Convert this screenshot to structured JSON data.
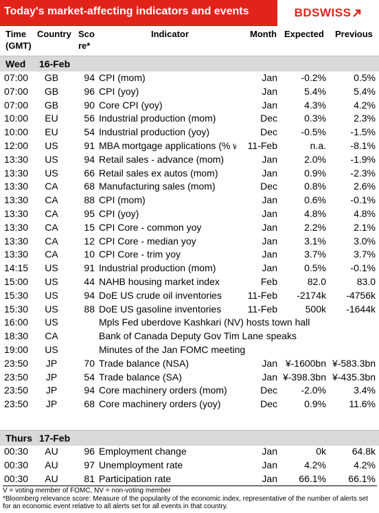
{
  "header": {
    "title": "Today's market-affecting indicators and events",
    "logo": "BDSWISS"
  },
  "columns": {
    "time": [
      "Time",
      "(GMT)"
    ],
    "country": "Country",
    "score": [
      "Sco",
      "re*"
    ],
    "indicator": "Indicator",
    "month": "Month",
    "expected": "Expected",
    "previous": "Previous"
  },
  "days": [
    {
      "day": "Wed",
      "date": "16-Feb",
      "rows": [
        {
          "time": "07:00",
          "country": "GB",
          "score": "94",
          "indicator": "CPI (mom)",
          "month": "Jan",
          "expected": "-0.2%",
          "previous": "0.5%"
        },
        {
          "time": "07:00",
          "country": "GB",
          "score": "96",
          "indicator": "CPI (yoy)",
          "month": "Jan",
          "expected": "5.4%",
          "previous": "5.4%"
        },
        {
          "time": "07:00",
          "country": "GB",
          "score": "90",
          "indicator": "Core CPI (yoy)",
          "month": "Jan",
          "expected": "4.3%",
          "previous": "4.2%"
        },
        {
          "time": "10:00",
          "country": "EU",
          "score": "56",
          "indicator": "Industrial production (mom)",
          "month": "Dec",
          "expected": "0.3%",
          "previous": "2.3%"
        },
        {
          "time": "10:00",
          "country": "EU",
          "score": "54",
          "indicator": "Industrial production (yoy)",
          "month": "Dec",
          "expected": "-0.5%",
          "previous": "-1.5%"
        },
        {
          "time": "12:00",
          "country": "US",
          "score": "91",
          "indicator": "MBA mortgage applications (% w",
          "month": "11-Feb",
          "expected": "n.a.",
          "previous": "-8.1%"
        },
        {
          "time": "13:30",
          "country": "US",
          "score": "94",
          "indicator": "Retail sales - advance (mom)",
          "month": "Jan",
          "expected": "2.0%",
          "previous": "-1.9%"
        },
        {
          "time": "13:30",
          "country": "US",
          "score": "66",
          "indicator": "Retail sales ex autos (mom)",
          "month": "Jan",
          "expected": "0.9%",
          "previous": "-2.3%"
        },
        {
          "time": "13:30",
          "country": "CA",
          "score": "68",
          "indicator": "Manufacturing sales (mom)",
          "month": "Dec",
          "expected": "0.8%",
          "previous": "2.6%"
        },
        {
          "time": "13:30",
          "country": "CA",
          "score": "88",
          "indicator": "CPI (mom)",
          "month": "Jan",
          "expected": "0.6%",
          "previous": "-0.1%"
        },
        {
          "time": "13:30",
          "country": "CA",
          "score": "95",
          "indicator": "CPI (yoy)",
          "month": "Jan",
          "expected": "4.8%",
          "previous": "4.8%"
        },
        {
          "time": "13:30",
          "country": "CA",
          "score": "15",
          "indicator": "CPI Core - common yoy",
          "month": "Jan",
          "expected": "2.2%",
          "previous": "2.1%"
        },
        {
          "time": "13:30",
          "country": "CA",
          "score": "12",
          "indicator": "CPI Core - median yoy",
          "month": "Jan",
          "expected": "3.1%",
          "previous": "3.0%"
        },
        {
          "time": "13:30",
          "country": "CA",
          "score": "10",
          "indicator": "CPI Core - trim yoy",
          "month": "Jan",
          "expected": "3.7%",
          "previous": "3.7%"
        },
        {
          "time": "14:15",
          "country": "US",
          "score": "91",
          "indicator": "Industrial production (mom)",
          "month": "Jan",
          "expected": "0.5%",
          "previous": "-0.1%"
        },
        {
          "time": "15:00",
          "country": "US",
          "score": "44",
          "indicator": "NAHB housing market index",
          "month": "Feb",
          "expected": "82.0",
          "previous": "83.0"
        },
        {
          "time": "15:30",
          "country": "US",
          "score": "94",
          "indicator": "DoE US crude oil inventories",
          "month": "11-Feb",
          "expected": "-2174k",
          "previous": "-4756k"
        },
        {
          "time": "15:30",
          "country": "US",
          "score": "88",
          "indicator": "DoE US gasoline inventories",
          "month": "11-Feb",
          "expected": "500k",
          "previous": "-1644k"
        },
        {
          "time": "16:00",
          "country": "US",
          "score": "",
          "indicator": "Mpls Fed uberdove Kashkari (NV) hosts town hall",
          "month": "",
          "expected": "",
          "previous": ""
        },
        {
          "time": "18:30",
          "country": "CA",
          "score": "",
          "indicator": "Bank of Canada Deputy Gov Tim Lane speaks",
          "month": "",
          "expected": "",
          "previous": ""
        },
        {
          "time": "19:00",
          "country": "US",
          "score": "",
          "indicator": "Minutes of the Jan FOMC meeting",
          "month": "",
          "expected": "",
          "previous": ""
        },
        {
          "time": "23:50",
          "country": "JP",
          "score": "70",
          "indicator": "Trade balance (NSA)",
          "month": "Jan",
          "expected": "¥-1600bn",
          "previous": "¥-583.3bn"
        },
        {
          "time": "23:50",
          "country": "JP",
          "score": "54",
          "indicator": "Trade balance (SA)",
          "month": "Jan",
          "expected": "¥-398.3bn",
          "previous": "¥-435.3bn"
        },
        {
          "time": "23:50",
          "country": "JP",
          "score": "94",
          "indicator": "Core machinery orders (mom)",
          "month": "Dec",
          "expected": "-2.0%",
          "previous": "3.4%"
        },
        {
          "time": "23:50",
          "country": "JP",
          "score": "68",
          "indicator": "Core machinery orders (yoy)",
          "month": "Dec",
          "expected": "0.9%",
          "previous": "11.6%"
        }
      ]
    },
    {
      "day": "Thurs",
      "date": "17-Feb",
      "rows": [
        {
          "time": "00:30",
          "country": "AU",
          "score": "96",
          "indicator": "Employment change",
          "month": "Jan",
          "expected": "0k",
          "previous": "64.8k"
        },
        {
          "time": "00:30",
          "country": "AU",
          "score": "97",
          "indicator": "Unemployment rate",
          "month": "Jan",
          "expected": "4.2%",
          "previous": "4.2%"
        },
        {
          "time": "00:30",
          "country": "AU",
          "score": "81",
          "indicator": "Participation rate",
          "month": "Jan",
          "expected": "66.1%",
          "previous": "66.1%"
        }
      ]
    }
  ],
  "footnotes": [
    "V = voting member of FOMC, NV = non-voting member",
    "*Bloomberg relevance score:  Measure of the popularity of the economic index, representative of the number of alerts set for an economic event relative to all alerts set for all events in that country."
  ]
}
